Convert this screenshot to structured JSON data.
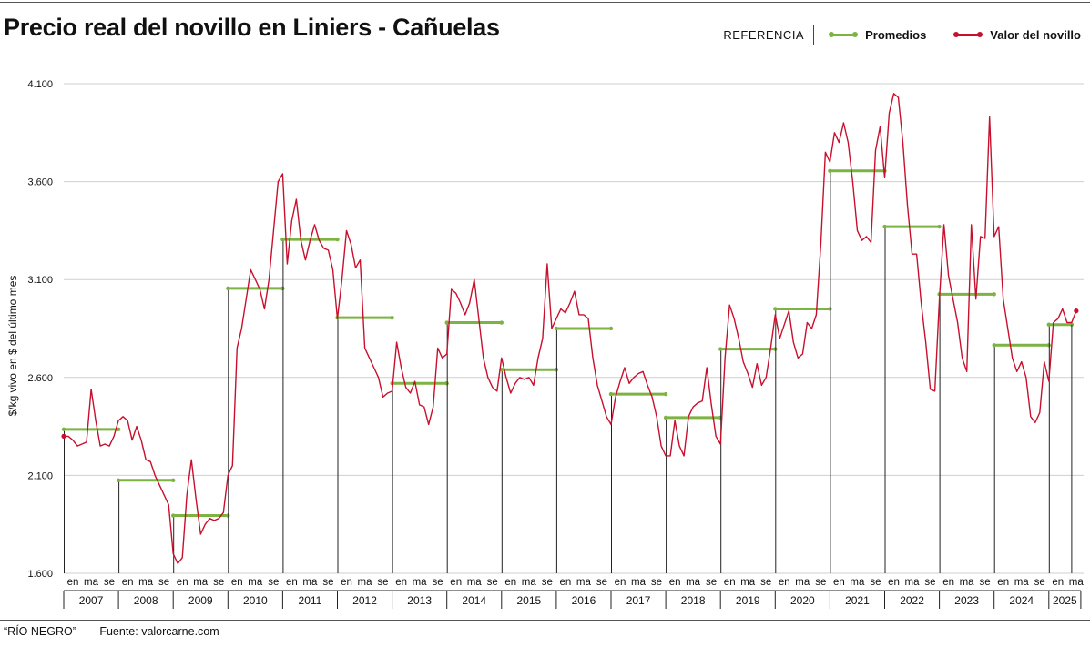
{
  "header": {
    "title": "Precio real del novillo en Liniers - Cañuelas",
    "legend_label": "REFERENCIA"
  },
  "footer": {
    "publisher": "“RÍO NEGRO”",
    "source": "Fuente: valorcarne.com"
  },
  "colors": {
    "averages": "#7cb342",
    "price": "#c8102e",
    "grid": "#cfcfcf",
    "bracket": "#222222"
  },
  "chart_data": {
    "type": "line",
    "title": "Precio real del novillo en Liniers - Cañuelas",
    "xlabel": "",
    "ylabel": "$/kg vivo en $ del último mes",
    "ylim": [
      1600,
      4100
    ],
    "yticks": [
      1600,
      2100,
      2600,
      3100,
      3600,
      4100
    ],
    "ytick_labels": [
      "1.600",
      "2.100",
      "2.600",
      "3.100",
      "3.600",
      "4.100"
    ],
    "month_tick_labels": [
      "en",
      "ma",
      "se"
    ],
    "years": [
      "2007",
      "2008",
      "2009",
      "2010",
      "2011",
      "2012",
      "2013",
      "2014",
      "2015",
      "2016",
      "2017",
      "2018",
      "2019",
      "2020",
      "2021",
      "2022",
      "2023",
      "2024",
      "2025"
    ],
    "grid": "horizontal",
    "legend_position": "top-right",
    "series": [
      {
        "name": "Promedios",
        "type": "step",
        "values": [
          2335,
          2075,
          1895,
          3055,
          3305,
          2905,
          2570,
          2880,
          2640,
          2850,
          2515,
          2395,
          2745,
          2950,
          3655,
          3370,
          3025,
          2765,
          2870
        ]
      },
      {
        "name": "Valor del novillo",
        "start": "2007-01",
        "values": [
          2300,
          2300,
          2280,
          2250,
          2260,
          2270,
          2540,
          2380,
          2250,
          2260,
          2250,
          2300,
          2380,
          2400,
          2380,
          2280,
          2350,
          2280,
          2180,
          2170,
          2100,
          2050,
          2000,
          1950,
          1700,
          1650,
          1680,
          2000,
          2180,
          1980,
          1800,
          1850,
          1880,
          1870,
          1880,
          1910,
          2100,
          2150,
          2750,
          2850,
          3000,
          3150,
          3100,
          3050,
          2950,
          3100,
          3350,
          3600,
          3640,
          3180,
          3400,
          3510,
          3300,
          3200,
          3300,
          3380,
          3300,
          3260,
          3250,
          3150,
          2900,
          3100,
          3350,
          3280,
          3160,
          3200,
          2750,
          2700,
          2650,
          2600,
          2500,
          2520,
          2530,
          2780,
          2650,
          2550,
          2520,
          2580,
          2460,
          2450,
          2360,
          2450,
          2750,
          2700,
          2720,
          3050,
          3030,
          2980,
          2920,
          2980,
          3100,
          2900,
          2700,
          2600,
          2550,
          2530,
          2700,
          2600,
          2520,
          2570,
          2600,
          2590,
          2600,
          2560,
          2700,
          2800,
          3180,
          2850,
          2900,
          2950,
          2930,
          2980,
          3040,
          2920,
          2920,
          2900,
          2700,
          2560,
          2480,
          2400,
          2360,
          2500,
          2580,
          2650,
          2570,
          2600,
          2620,
          2630,
          2560,
          2500,
          2400,
          2250,
          2200,
          2200,
          2380,
          2250,
          2200,
          2400,
          2450,
          2470,
          2480,
          2650,
          2460,
          2300,
          2260,
          2700,
          2970,
          2900,
          2800,
          2680,
          2620,
          2550,
          2670,
          2560,
          2600,
          2750,
          2920,
          2800,
          2870,
          2940,
          2780,
          2700,
          2720,
          2880,
          2850,
          2920,
          3280,
          3750,
          3700,
          3850,
          3800,
          3900,
          3800,
          3600,
          3350,
          3300,
          3320,
          3290,
          3760,
          3880,
          3620,
          3950,
          4050,
          4030,
          3800,
          3480,
          3230,
          3230,
          2980,
          2780,
          2540,
          2530,
          3000,
          3380,
          3120,
          3000,
          2880,
          2700,
          2630,
          3380,
          3000,
          3320,
          3310,
          3930,
          3320,
          3370,
          3000,
          2850,
          2700,
          2630,
          2680,
          2600,
          2400,
          2370,
          2420,
          2680,
          2580,
          2880,
          2900,
          2950,
          2880,
          2880,
          2940
        ]
      }
    ]
  }
}
